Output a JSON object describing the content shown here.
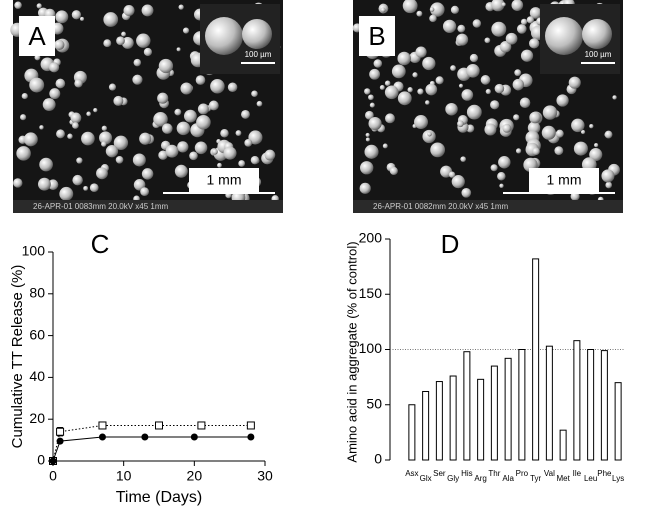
{
  "panels": [
    {
      "label": "A",
      "inset_scale": "100 µm",
      "scale": "1 mm",
      "footer": "26-APR-01   0083mm 20.0kV x45   1mm"
    },
    {
      "label": "B",
      "inset_scale": "100 µm",
      "scale": "1 mm",
      "footer": "26-APR-01   0082mm 20.0kV x45   1mm"
    }
  ],
  "chart_data": [
    {
      "type": "line",
      "panel_label": "C",
      "xlabel": "Time (Days)",
      "ylabel": "Cumulative TT Release (%)",
      "xlim": [
        0,
        30
      ],
      "xticks": [
        0,
        10,
        20,
        30
      ],
      "ylim": [
        0,
        100
      ],
      "yticks": [
        0,
        20,
        40,
        60,
        80,
        100
      ],
      "series": [
        {
          "color": "#000000",
          "marker": "open-square",
          "line_style": "dotted",
          "x": [
            0,
            1,
            7,
            15,
            21,
            28
          ],
          "values": [
            0,
            14,
            17,
            17,
            17,
            17
          ],
          "errors": [
            0,
            2,
            1.5,
            1.5,
            1.5,
            1.5
          ]
        },
        {
          "color": "#000000",
          "marker": "filled-circle",
          "line_style": "solid",
          "x": [
            0,
            1,
            7,
            13,
            20,
            28
          ],
          "values": [
            0,
            9.5,
            11.5,
            11.5,
            11.5,
            11.5
          ]
        }
      ]
    },
    {
      "type": "bar",
      "panel_label": "D",
      "ylabel": "Amino acid in aggregate (% of control)",
      "categories": [
        "Asx",
        "Glx",
        "Ser",
        "Gly",
        "His",
        "Arg",
        "Thr",
        "Ala",
        "Pro",
        "Tyr",
        "Val",
        "Met",
        "Ile",
        "Leu",
        "Phe",
        "Lys"
      ],
      "values": [
        50,
        62,
        71,
        76,
        98,
        73,
        85,
        92,
        100,
        182,
        103,
        27,
        108,
        100,
        99,
        70
      ],
      "color": "#ffffff",
      "edge_color": "#000000",
      "ylim": [
        0,
        200
      ],
      "yticks": [
        0,
        50,
        100,
        150,
        200
      ],
      "reference_line": 100
    }
  ]
}
